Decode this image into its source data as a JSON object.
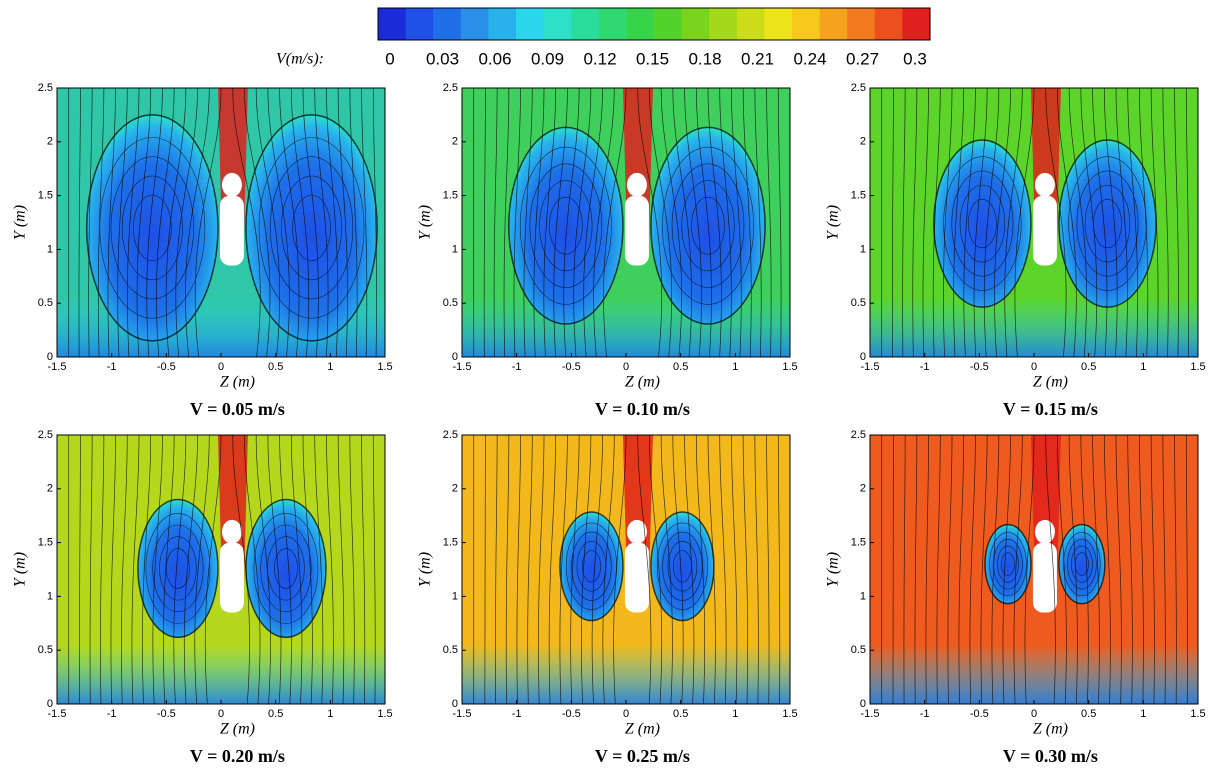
{
  "colorbar": {
    "label": "V(m/s):",
    "lim": [
      0,
      0.3
    ],
    "ticks": [
      0,
      0.03,
      0.06,
      0.09,
      0.12,
      0.15,
      0.18,
      0.21,
      0.24,
      0.27,
      0.3
    ],
    "colors": [
      "#1a2bd8",
      "#1f4fe6",
      "#1e6fe8",
      "#2a8fe8",
      "#28b2ec",
      "#2ad6ee",
      "#2de0c8",
      "#2adc9c",
      "#2fd870",
      "#36d448",
      "#52d22a",
      "#7ad41e",
      "#a4d81a",
      "#ccdc18",
      "#eee41a",
      "#f6c81c",
      "#f5a21c",
      "#f27a1e",
      "#ec501e",
      "#e0201c"
    ]
  },
  "chart_data": [
    {
      "type": "contour",
      "title": "V = 0.05 m/s",
      "xlabel": "Z (m)",
      "ylabel": "Y (m)",
      "xlim": [
        -1.5,
        1.5
      ],
      "ylim": [
        0,
        2.5
      ],
      "xticks": [
        -1.5,
        -1,
        -0.5,
        0,
        0.5,
        1,
        1.5
      ],
      "yticks": [
        0,
        0.5,
        1,
        1.5,
        2,
        2.5
      ],
      "color": "#2fc7a8"
    },
    {
      "type": "contour",
      "title": "V = 0.10 m/s",
      "xlabel": "Z (m)",
      "ylabel": "Y (m)",
      "xlim": [
        -1.5,
        1.5
      ],
      "ylim": [
        0,
        2.5
      ],
      "xticks": [
        -1.5,
        -1,
        -0.5,
        0,
        0.5,
        1,
        1.5
      ],
      "yticks": [
        0,
        0.5,
        1,
        1.5,
        2,
        2.5
      ],
      "color": "#3fcf5c"
    },
    {
      "type": "contour",
      "title": "V = 0.15 m/s",
      "xlabel": "Z (m)",
      "ylabel": "Y (m)",
      "xlim": [
        -1.5,
        1.5
      ],
      "ylim": [
        0,
        2.5
      ],
      "xticks": [
        -1.5,
        -1,
        -0.5,
        0,
        0.5,
        1,
        1.5
      ],
      "yticks": [
        0,
        0.5,
        1,
        1.5,
        2,
        2.5
      ],
      "color": "#5cd42a"
    },
    {
      "type": "contour",
      "title": "V = 0.20 m/s",
      "xlabel": "Z (m)",
      "ylabel": "Y (m)",
      "xlim": [
        -1.5,
        1.5
      ],
      "ylim": [
        0,
        2.5
      ],
      "xticks": [
        -1.5,
        -1,
        -0.5,
        0,
        0.5,
        1,
        1.5
      ],
      "yticks": [
        0,
        0.5,
        1,
        1.5,
        2,
        2.5
      ],
      "color": "#b6d81c"
    },
    {
      "type": "contour",
      "title": "V = 0.25 m/s",
      "xlabel": "Z (m)",
      "ylabel": "Y (m)",
      "xlim": [
        -1.5,
        1.5
      ],
      "ylim": [
        0,
        2.5
      ],
      "xticks": [
        -1.5,
        -1,
        -0.5,
        0,
        0.5,
        1,
        1.5
      ],
      "yticks": [
        0,
        0.5,
        1,
        1.5,
        2,
        2.5
      ],
      "color": "#f2b81c"
    },
    {
      "type": "contour",
      "title": "V = 0.30 m/s",
      "xlabel": "Z (m)",
      "ylabel": "Y (m)",
      "xlim": [
        -1.5,
        1.5
      ],
      "ylim": [
        0,
        2.5
      ],
      "xticks": [
        -1.5,
        -1,
        -0.5,
        0,
        0.5,
        1,
        1.5
      ],
      "yticks": [
        0,
        0.5,
        1,
        1.5,
        2,
        2.5
      ],
      "color": "#ef5a1e"
    }
  ]
}
